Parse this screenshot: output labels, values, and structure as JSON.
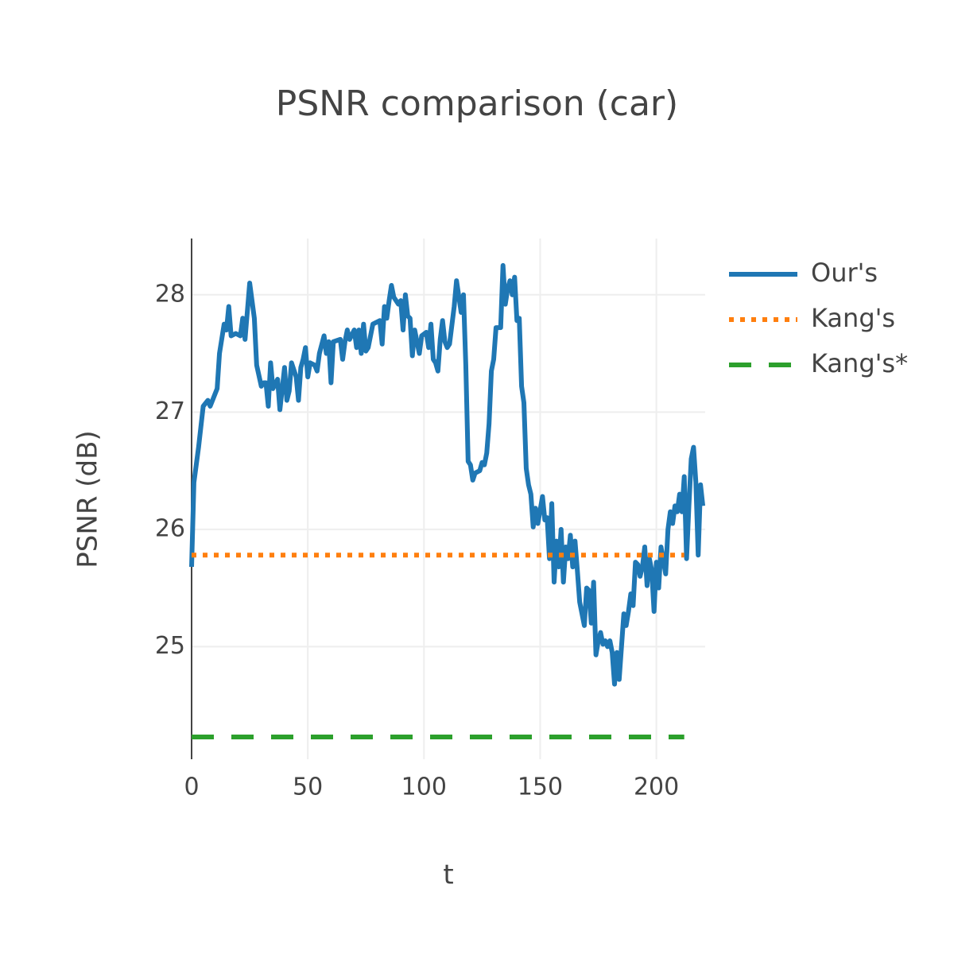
{
  "chart_data": {
    "type": "line",
    "title": "PSNR comparison (car)",
    "xlabel": "t",
    "ylabel": "PSNR (dB)",
    "xlim": [
      0,
      221
    ],
    "ylim": [
      24.04,
      28.48
    ],
    "xticks": [
      0,
      50,
      100,
      150,
      200
    ],
    "yticks": [
      25,
      26,
      27,
      28
    ],
    "grid": true,
    "legend": "right",
    "series": [
      {
        "name": "Our's",
        "color": "#1f77b4",
        "style": "solid",
        "x": [
          0,
          1,
          3,
          5,
          7,
          8,
          11,
          12,
          14,
          15,
          16,
          17,
          19,
          21,
          22,
          23,
          25,
          27,
          28,
          30,
          31,
          32,
          33,
          34,
          35,
          37,
          38,
          40,
          41,
          42,
          43,
          45,
          46,
          47,
          48,
          49,
          50,
          51,
          53,
          54,
          55,
          57,
          58,
          59,
          60,
          61,
          64,
          65,
          66,
          67,
          68,
          70,
          71,
          72,
          73,
          74,
          75,
          76,
          78,
          81,
          82,
          83,
          84,
          85,
          86,
          87,
          89,
          90,
          91,
          92,
          93,
          94,
          95,
          96,
          98,
          99,
          101,
          102,
          103,
          104,
          105,
          106,
          107,
          108,
          109,
          110,
          111,
          113,
          114,
          116,
          117,
          118,
          119,
          120,
          121,
          122,
          124,
          125,
          126,
          127,
          128,
          129,
          130,
          131,
          133,
          134,
          135,
          136,
          137,
          138,
          139,
          140,
          141,
          142,
          143,
          144,
          145,
          146,
          147,
          148,
          149,
          151,
          152,
          153,
          154,
          155,
          156,
          157,
          158,
          159,
          160,
          161,
          162,
          163,
          164,
          165,
          166,
          167,
          169,
          170,
          171,
          172,
          173,
          174,
          175,
          176,
          177,
          178,
          179,
          180,
          181,
          182,
          183,
          184,
          186,
          187,
          188,
          189,
          190,
          191,
          192,
          193,
          194,
          195,
          196,
          197,
          198,
          199,
          200,
          201,
          202,
          204,
          205,
          206,
          207,
          208,
          209,
          210,
          211,
          212,
          213,
          214,
          215,
          216,
          217,
          218,
          219,
          220
        ],
        "values": [
          25.68,
          26.4,
          26.7,
          27.05,
          27.1,
          27.05,
          27.2,
          27.5,
          27.75,
          27.7,
          27.9,
          27.65,
          27.67,
          27.65,
          27.8,
          27.62,
          28.1,
          27.8,
          27.4,
          27.22,
          27.25,
          27.25,
          27.05,
          27.42,
          27.2,
          27.28,
          27.02,
          27.38,
          27.1,
          27.18,
          27.42,
          27.3,
          27.1,
          27.38,
          27.45,
          27.55,
          27.3,
          27.42,
          27.4,
          27.35,
          27.5,
          27.65,
          27.5,
          27.6,
          27.25,
          27.6,
          27.62,
          27.45,
          27.6,
          27.7,
          27.62,
          27.7,
          27.55,
          27.7,
          27.5,
          27.75,
          27.52,
          27.55,
          27.75,
          27.78,
          27.58,
          27.9,
          27.8,
          27.95,
          28.08,
          27.98,
          27.92,
          27.95,
          27.7,
          28.0,
          27.82,
          27.8,
          27.48,
          27.7,
          27.5,
          27.65,
          27.68,
          27.55,
          27.75,
          27.45,
          27.42,
          27.35,
          27.62,
          27.78,
          27.6,
          27.55,
          27.58,
          27.9,
          28.12,
          27.85,
          28.0,
          27.4,
          26.58,
          26.55,
          26.42,
          26.48,
          26.5,
          26.57,
          26.55,
          26.65,
          26.9,
          27.35,
          27.45,
          27.72,
          27.72,
          28.25,
          27.92,
          28.05,
          28.12,
          28.0,
          28.15,
          27.78,
          27.8,
          27.22,
          27.08,
          26.52,
          26.38,
          26.3,
          26.02,
          26.18,
          26.05,
          26.28,
          26.08,
          26.1,
          25.75,
          26.22,
          25.55,
          25.9,
          25.68,
          26.0,
          25.55,
          25.85,
          25.75,
          25.95,
          25.68,
          25.9,
          25.65,
          25.38,
          25.18,
          25.5,
          25.48,
          25.2,
          25.55,
          24.93,
          25.05,
          25.12,
          25.02,
          25.05,
          25.0,
          25.05,
          24.95,
          24.68,
          24.95,
          24.72,
          25.28,
          25.18,
          25.3,
          25.45,
          25.35,
          25.72,
          25.7,
          25.6,
          25.68,
          25.85,
          25.52,
          25.75,
          25.65,
          25.3,
          25.72,
          25.5,
          25.85,
          25.62,
          26.0,
          26.15,
          26.05,
          26.2,
          26.15,
          26.3,
          26.15,
          26.45,
          25.75,
          26.2,
          26.6,
          26.7,
          26.4,
          25.78,
          26.38,
          26.2
        ]
      },
      {
        "name": "Kang's",
        "color": "#ff7f0e",
        "style": "dot",
        "x": [
          0,
          212
        ],
        "values": [
          25.78,
          25.78
        ]
      },
      {
        "name": "Kang's*",
        "color": "#2ca02c",
        "style": "dash",
        "x": [
          0,
          212
        ],
        "values": [
          24.23,
          24.23
        ]
      }
    ]
  }
}
